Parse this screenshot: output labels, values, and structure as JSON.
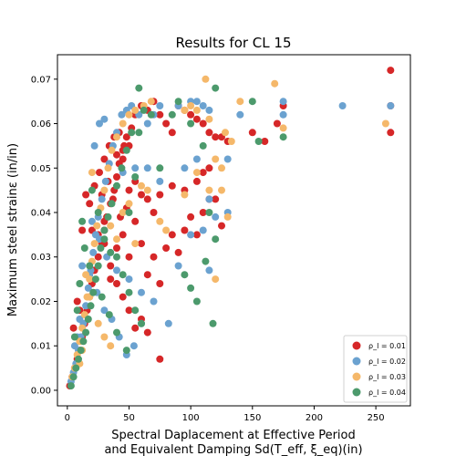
{
  "chart_data": {
    "type": "scatter",
    "title": "Results for CL 15",
    "xlabel_line1": "Spectral Daplacement at Effective Period",
    "xlabel_line2": "and Equivalent Damping Sd(T_eff, ξ_eq)(in)",
    "ylabel": "Maximum steel strainε (in/in)",
    "xlim": [
      -8,
      278
    ],
    "ylim": [
      -0.0035,
      0.0755
    ],
    "xticks": [
      0,
      50,
      100,
      150,
      200,
      250
    ],
    "yticks": [
      0.0,
      0.01,
      0.02,
      0.03,
      0.04,
      0.05,
      0.06,
      0.07
    ],
    "xtick_labels": [
      "0",
      "50",
      "100",
      "150",
      "200",
      "250"
    ],
    "ytick_labels": [
      "0.00",
      "0.01",
      "0.02",
      "0.03",
      "0.04",
      "0.05",
      "0.06",
      "0.07"
    ],
    "grid": false,
    "legend_position": "lower-right",
    "series": [
      {
        "name": "ρ_l = 0.01",
        "color": "#d62728",
        "points": [
          [
            2,
            0.001
          ],
          [
            4,
            0.003
          ],
          [
            6,
            0.005
          ],
          [
            8,
            0.007
          ],
          [
            10,
            0.009
          ],
          [
            12,
            0.012
          ],
          [
            14,
            0.015
          ],
          [
            16,
            0.018
          ],
          [
            18,
            0.021
          ],
          [
            20,
            0.024
          ],
          [
            22,
            0.027
          ],
          [
            25,
            0.03
          ],
          [
            28,
            0.033
          ],
          [
            30,
            0.036
          ],
          [
            32,
            0.039
          ],
          [
            35,
            0.042
          ],
          [
            38,
            0.045
          ],
          [
            40,
            0.048
          ],
          [
            42,
            0.051
          ],
          [
            45,
            0.054
          ],
          [
            48,
            0.057
          ],
          [
            52,
            0.059
          ],
          [
            55,
            0.062
          ],
          [
            60,
            0.064
          ],
          [
            65,
            0.063
          ],
          [
            70,
            0.065
          ],
          [
            75,
            0.062
          ],
          [
            80,
            0.06
          ],
          [
            85,
            0.058
          ],
          [
            90,
            0.064
          ],
          [
            95,
            0.063
          ],
          [
            100,
            0.062
          ],
          [
            105,
            0.061
          ],
          [
            110,
            0.06
          ],
          [
            115,
            0.058
          ],
          [
            120,
            0.057
          ],
          [
            125,
            0.057
          ],
          [
            130,
            0.056
          ],
          [
            150,
            0.058
          ],
          [
            160,
            0.056
          ],
          [
            170,
            0.06
          ],
          [
            175,
            0.064
          ],
          [
            262,
            0.072
          ],
          [
            262,
            0.064
          ],
          [
            262,
            0.058
          ],
          [
            15,
            0.044
          ],
          [
            18,
            0.042
          ],
          [
            20,
            0.036
          ],
          [
            25,
            0.035
          ],
          [
            30,
            0.033
          ],
          [
            35,
            0.028
          ],
          [
            40,
            0.032
          ],
          [
            45,
            0.035
          ],
          [
            50,
            0.03
          ],
          [
            55,
            0.038
          ],
          [
            60,
            0.033
          ],
          [
            65,
            0.026
          ],
          [
            70,
            0.03
          ],
          [
            75,
            0.024
          ],
          [
            80,
            0.032
          ],
          [
            85,
            0.035
          ],
          [
            90,
            0.031
          ],
          [
            95,
            0.036
          ],
          [
            100,
            0.039
          ],
          [
            105,
            0.035
          ],
          [
            110,
            0.04
          ],
          [
            115,
            0.043
          ],
          [
            120,
            0.043
          ],
          [
            125,
            0.037
          ],
          [
            50,
            0.045
          ],
          [
            55,
            0.047
          ],
          [
            60,
            0.044
          ],
          [
            65,
            0.043
          ],
          [
            70,
            0.04
          ],
          [
            75,
            0.044
          ],
          [
            85,
            0.046
          ],
          [
            95,
            0.045
          ],
          [
            105,
            0.047
          ],
          [
            110,
            0.049
          ],
          [
            115,
            0.05
          ],
          [
            40,
            0.053
          ],
          [
            45,
            0.052
          ],
          [
            50,
            0.055
          ],
          [
            12,
            0.036
          ],
          [
            8,
            0.02
          ],
          [
            10,
            0.018
          ],
          [
            5,
            0.014
          ],
          [
            30,
            0.038
          ],
          [
            35,
            0.025
          ],
          [
            40,
            0.024
          ],
          [
            45,
            0.021
          ],
          [
            50,
            0.018
          ],
          [
            55,
            0.014
          ],
          [
            60,
            0.016
          ],
          [
            65,
            0.013
          ],
          [
            75,
            0.007
          ],
          [
            22,
            0.046
          ],
          [
            26,
            0.049
          ],
          [
            30,
            0.052
          ],
          [
            34,
            0.055
          ],
          [
            38,
            0.057
          ],
          [
            42,
            0.058
          ],
          [
            46,
            0.055
          ],
          [
            28,
            0.044
          ],
          [
            33,
            0.047
          ],
          [
            37,
            0.043
          ],
          [
            43,
            0.039
          ],
          [
            48,
            0.041
          ]
        ]
      },
      {
        "name": "ρ_l = 0.02",
        "color": "#6ba2d0",
        "points": [
          [
            3,
            0.002
          ],
          [
            5,
            0.004
          ],
          [
            7,
            0.006
          ],
          [
            9,
            0.009
          ],
          [
            11,
            0.012
          ],
          [
            13,
            0.015
          ],
          [
            15,
            0.019
          ],
          [
            17,
            0.023
          ],
          [
            19,
            0.027
          ],
          [
            21,
            0.031
          ],
          [
            23,
            0.035
          ],
          [
            25,
            0.039
          ],
          [
            28,
            0.043
          ],
          [
            31,
            0.047
          ],
          [
            34,
            0.051
          ],
          [
            37,
            0.055
          ],
          [
            40,
            0.058
          ],
          [
            44,
            0.062
          ],
          [
            48,
            0.063
          ],
          [
            52,
            0.064
          ],
          [
            58,
            0.062
          ],
          [
            65,
            0.06
          ],
          [
            70,
            0.062
          ],
          [
            75,
            0.064
          ],
          [
            90,
            0.064
          ],
          [
            100,
            0.065
          ],
          [
            105,
            0.065
          ],
          [
            110,
            0.064
          ],
          [
            115,
            0.063
          ],
          [
            130,
            0.052
          ],
          [
            140,
            0.062
          ],
          [
            175,
            0.065
          ],
          [
            175,
            0.062
          ],
          [
            223,
            0.064
          ],
          [
            262,
            0.064
          ],
          [
            12,
            0.028
          ],
          [
            18,
            0.026
          ],
          [
            24,
            0.022
          ],
          [
            30,
            0.018
          ],
          [
            36,
            0.016
          ],
          [
            42,
            0.012
          ],
          [
            48,
            0.008
          ],
          [
            54,
            0.01
          ],
          [
            60,
            0.015
          ],
          [
            70,
            0.02
          ],
          [
            82,
            0.015
          ],
          [
            90,
            0.028
          ],
          [
            100,
            0.035
          ],
          [
            110,
            0.036
          ],
          [
            115,
            0.027
          ],
          [
            120,
            0.039
          ],
          [
            130,
            0.04
          ],
          [
            22,
            0.055
          ],
          [
            26,
            0.06
          ],
          [
            30,
            0.061
          ],
          [
            45,
            0.049
          ],
          [
            55,
            0.05
          ],
          [
            65,
            0.05
          ],
          [
            75,
            0.047
          ],
          [
            95,
            0.05
          ],
          [
            105,
            0.052
          ],
          [
            115,
            0.043
          ],
          [
            20,
            0.038
          ],
          [
            26,
            0.034
          ],
          [
            32,
            0.03
          ],
          [
            40,
            0.027
          ],
          [
            50,
            0.025
          ],
          [
            60,
            0.022
          ],
          [
            8,
            0.012
          ],
          [
            10,
            0.016
          ],
          [
            6,
            0.01
          ]
        ]
      },
      {
        "name": "ρ_l = 0.03",
        "color": "#f5b86a",
        "points": [
          [
            4,
            0.003
          ],
          [
            6,
            0.005
          ],
          [
            8,
            0.008
          ],
          [
            10,
            0.011
          ],
          [
            12,
            0.014
          ],
          [
            14,
            0.017
          ],
          [
            16,
            0.021
          ],
          [
            18,
            0.025
          ],
          [
            20,
            0.029
          ],
          [
            22,
            0.033
          ],
          [
            24,
            0.037
          ],
          [
            27,
            0.041
          ],
          [
            30,
            0.045
          ],
          [
            33,
            0.05
          ],
          [
            36,
            0.054
          ],
          [
            40,
            0.057
          ],
          [
            45,
            0.06
          ],
          [
            50,
            0.062
          ],
          [
            55,
            0.063
          ],
          [
            62,
            0.064
          ],
          [
            68,
            0.065
          ],
          [
            95,
            0.063
          ],
          [
            100,
            0.064
          ],
          [
            105,
            0.063
          ],
          [
            112,
            0.07
          ],
          [
            115,
            0.061
          ],
          [
            120,
            0.052
          ],
          [
            125,
            0.05
          ],
          [
            128,
            0.058
          ],
          [
            133,
            0.056
          ],
          [
            140,
            0.065
          ],
          [
            168,
            0.069
          ],
          [
            175,
            0.059
          ],
          [
            258,
            0.06
          ],
          [
            20,
            0.049
          ],
          [
            35,
            0.037
          ],
          [
            40,
            0.034
          ],
          [
            45,
            0.04
          ],
          [
            55,
            0.033
          ],
          [
            65,
            0.045
          ],
          [
            75,
            0.038
          ],
          [
            80,
            0.036
          ],
          [
            95,
            0.044
          ],
          [
            105,
            0.049
          ],
          [
            115,
            0.045
          ],
          [
            120,
            0.025
          ],
          [
            125,
            0.045
          ],
          [
            130,
            0.039
          ],
          [
            15,
            0.026
          ],
          [
            18,
            0.021
          ],
          [
            25,
            0.015
          ],
          [
            30,
            0.012
          ],
          [
            35,
            0.01
          ],
          [
            12,
            0.009
          ],
          [
            10,
            0.006
          ],
          [
            50,
            0.042
          ],
          [
            60,
            0.046
          ]
        ]
      },
      {
        "name": "ρ_l = 0.04",
        "color": "#4c9a6c",
        "points": [
          [
            3,
            0.001
          ],
          [
            5,
            0.003
          ],
          [
            7,
            0.005
          ],
          [
            9,
            0.007
          ],
          [
            11,
            0.009
          ],
          [
            13,
            0.011
          ],
          [
            15,
            0.013
          ],
          [
            17,
            0.016
          ],
          [
            19,
            0.019
          ],
          [
            21,
            0.022
          ],
          [
            23,
            0.025
          ],
          [
            25,
            0.028
          ],
          [
            27,
            0.032
          ],
          [
            30,
            0.036
          ],
          [
            33,
            0.039
          ],
          [
            36,
            0.042
          ],
          [
            40,
            0.046
          ],
          [
            44,
            0.05
          ],
          [
            48,
            0.054
          ],
          [
            52,
            0.058
          ],
          [
            58,
            0.068
          ],
          [
            62,
            0.063
          ],
          [
            68,
            0.062
          ],
          [
            75,
            0.05
          ],
          [
            85,
            0.062
          ],
          [
            90,
            0.065
          ],
          [
            95,
            0.026
          ],
          [
            100,
            0.023
          ],
          [
            105,
            0.02
          ],
          [
            112,
            0.029
          ],
          [
            118,
            0.015
          ],
          [
            120,
            0.068
          ],
          [
            150,
            0.065
          ],
          [
            155,
            0.056
          ],
          [
            175,
            0.057
          ],
          [
            20,
            0.045
          ],
          [
            25,
            0.04
          ],
          [
            30,
            0.034
          ],
          [
            35,
            0.031
          ],
          [
            40,
            0.03
          ],
          [
            45,
            0.026
          ],
          [
            50,
            0.022
          ],
          [
            55,
            0.018
          ],
          [
            60,
            0.015
          ],
          [
            48,
            0.009
          ],
          [
            40,
            0.013
          ],
          [
            34,
            0.017
          ],
          [
            28,
            0.021
          ],
          [
            18,
            0.028
          ],
          [
            14,
            0.032
          ],
          [
            12,
            0.038
          ],
          [
            10,
            0.024
          ],
          [
            8,
            0.018
          ],
          [
            6,
            0.012
          ],
          [
            50,
            0.04
          ],
          [
            55,
            0.048
          ],
          [
            58,
            0.058
          ],
          [
            100,
            0.06
          ],
          [
            110,
            0.055
          ],
          [
            115,
            0.04
          ],
          [
            120,
            0.034
          ]
        ]
      }
    ]
  }
}
